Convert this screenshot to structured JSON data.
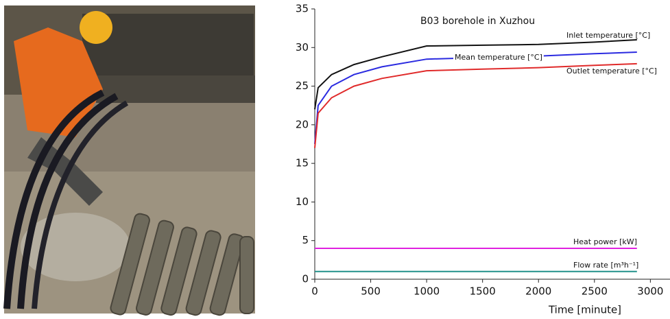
{
  "chart_data": {
    "type": "line",
    "title": "B03 borehole in Xuzhou",
    "x_label": "Time [minute]",
    "x": [
      0,
      30,
      150,
      350,
      600,
      1000,
      1500,
      2000,
      2500,
      2880
    ],
    "series": [
      {
        "name": "Inlet temperature [°C]",
        "color": "#111111",
        "values": [
          22,
          24.8,
          26.5,
          27.8,
          28.8,
          30.2,
          30.3,
          30.4,
          30.7,
          31.0
        ]
      },
      {
        "name": "Mean temperature [°C]",
        "color": "#2a2ae0",
        "values": [
          17.5,
          22.5,
          25,
          26.5,
          27.5,
          28.5,
          28.7,
          28.9,
          29.2,
          29.4
        ]
      },
      {
        "name": "Outlet temperature [°C]",
        "color": "#e02a2a",
        "values": [
          17,
          21.5,
          23.5,
          25,
          26,
          27,
          27.2,
          27.4,
          27.7,
          27.9
        ]
      },
      {
        "name": "Heat power [kW]",
        "color": "#e020e0",
        "values": [
          4,
          4,
          4,
          4,
          4,
          4,
          4,
          4,
          4,
          4
        ]
      },
      {
        "name": "Flow rate [m³h⁻¹]",
        "color": "#20908a",
        "values": [
          1,
          1,
          1,
          1,
          1,
          1,
          1,
          1,
          1,
          1
        ]
      }
    ],
    "xlim": [
      0,
      3200
    ],
    "xticks": [
      0,
      500,
      1000,
      1500,
      2000,
      2500,
      3000
    ],
    "ylim": [
      0,
      35
    ],
    "yticks": [
      0,
      5,
      10,
      15,
      20,
      25,
      30,
      35
    ]
  }
}
